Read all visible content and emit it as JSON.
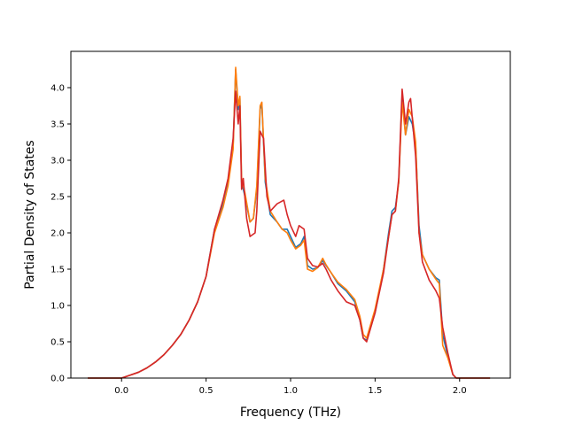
{
  "chart_data": {
    "type": "line",
    "title": "",
    "xlabel": "Frequency (THz)",
    "ylabel": "Partial Density of States",
    "xlim": [
      -0.3,
      2.3
    ],
    "ylim": [
      0.0,
      4.5
    ],
    "xticks": [
      0.0,
      0.5,
      1.0,
      1.5,
      2.0
    ],
    "xtick_labels": [
      "0.0",
      "0.5",
      "1.0",
      "1.5",
      "2.0"
    ],
    "yticks": [
      0.0,
      0.5,
      1.0,
      1.5,
      2.0,
      2.5,
      3.0,
      3.5,
      4.0
    ],
    "ytick_labels": [
      "0.0",
      "0.5",
      "1.0",
      "1.5",
      "2.0",
      "2.5",
      "3.0",
      "3.5",
      "4.0"
    ],
    "grid": false,
    "legend": "none",
    "series": [
      {
        "color": "#1f77b4",
        "points": [
          [
            -0.2,
            0
          ],
          [
            0.0,
            0
          ],
          [
            0.05,
            0.04
          ],
          [
            0.1,
            0.08
          ],
          [
            0.15,
            0.14
          ],
          [
            0.2,
            0.22
          ],
          [
            0.25,
            0.32
          ],
          [
            0.3,
            0.45
          ],
          [
            0.35,
            0.6
          ],
          [
            0.4,
            0.8
          ],
          [
            0.45,
            1.05
          ],
          [
            0.5,
            1.4
          ],
          [
            0.55,
            2.05
          ],
          [
            0.6,
            2.4
          ],
          [
            0.63,
            2.7
          ],
          [
            0.66,
            3.2
          ],
          [
            0.675,
            4.25
          ],
          [
            0.69,
            3.7
          ],
          [
            0.7,
            3.85
          ],
          [
            0.71,
            2.7
          ],
          [
            0.73,
            2.5
          ],
          [
            0.76,
            2.15
          ],
          [
            0.78,
            2.2
          ],
          [
            0.8,
            2.6
          ],
          [
            0.82,
            3.7
          ],
          [
            0.83,
            3.78
          ],
          [
            0.85,
            2.7
          ],
          [
            0.88,
            2.25
          ],
          [
            0.92,
            2.15
          ],
          [
            0.95,
            2.05
          ],
          [
            0.98,
            2.05
          ],
          [
            1.0,
            1.95
          ],
          [
            1.03,
            1.8
          ],
          [
            1.06,
            1.85
          ],
          [
            1.08,
            1.95
          ],
          [
            1.1,
            1.55
          ],
          [
            1.13,
            1.5
          ],
          [
            1.16,
            1.52
          ],
          [
            1.19,
            1.62
          ],
          [
            1.21,
            1.55
          ],
          [
            1.24,
            1.45
          ],
          [
            1.28,
            1.3
          ],
          [
            1.33,
            1.2
          ],
          [
            1.38,
            1.05
          ],
          [
            1.41,
            0.8
          ],
          [
            1.43,
            0.55
          ],
          [
            1.45,
            0.52
          ],
          [
            1.5,
            0.9
          ],
          [
            1.55,
            1.5
          ],
          [
            1.58,
            2.0
          ],
          [
            1.6,
            2.3
          ],
          [
            1.62,
            2.35
          ],
          [
            1.64,
            2.7
          ],
          [
            1.66,
            3.9
          ],
          [
            1.68,
            3.35
          ],
          [
            1.7,
            3.6
          ],
          [
            1.72,
            3.5
          ],
          [
            1.74,
            3.2
          ],
          [
            1.76,
            2.1
          ],
          [
            1.78,
            1.7
          ],
          [
            1.82,
            1.5
          ],
          [
            1.86,
            1.38
          ],
          [
            1.88,
            1.35
          ],
          [
            1.9,
            0.6
          ],
          [
            1.93,
            0.3
          ],
          [
            1.96,
            0.05
          ],
          [
            1.98,
            0
          ],
          [
            2.18,
            0
          ]
        ]
      },
      {
        "color": "#ff7f0e",
        "points": [
          [
            -0.2,
            0
          ],
          [
            0.0,
            0
          ],
          [
            0.05,
            0.04
          ],
          [
            0.1,
            0.08
          ],
          [
            0.15,
            0.14
          ],
          [
            0.2,
            0.22
          ],
          [
            0.25,
            0.32
          ],
          [
            0.3,
            0.45
          ],
          [
            0.35,
            0.6
          ],
          [
            0.4,
            0.8
          ],
          [
            0.45,
            1.05
          ],
          [
            0.5,
            1.4
          ],
          [
            0.55,
            2.0
          ],
          [
            0.6,
            2.35
          ],
          [
            0.63,
            2.65
          ],
          [
            0.66,
            3.15
          ],
          [
            0.675,
            4.28
          ],
          [
            0.69,
            3.75
          ],
          [
            0.7,
            3.88
          ],
          [
            0.71,
            2.75
          ],
          [
            0.73,
            2.55
          ],
          [
            0.76,
            2.15
          ],
          [
            0.78,
            2.2
          ],
          [
            0.8,
            2.65
          ],
          [
            0.82,
            3.75
          ],
          [
            0.83,
            3.8
          ],
          [
            0.85,
            2.75
          ],
          [
            0.88,
            2.3
          ],
          [
            0.92,
            2.15
          ],
          [
            0.95,
            2.05
          ],
          [
            0.98,
            2.0
          ],
          [
            1.0,
            1.9
          ],
          [
            1.03,
            1.78
          ],
          [
            1.06,
            1.83
          ],
          [
            1.08,
            1.9
          ],
          [
            1.1,
            1.5
          ],
          [
            1.13,
            1.47
          ],
          [
            1.16,
            1.52
          ],
          [
            1.19,
            1.65
          ],
          [
            1.21,
            1.56
          ],
          [
            1.24,
            1.45
          ],
          [
            1.28,
            1.32
          ],
          [
            1.33,
            1.22
          ],
          [
            1.38,
            1.08
          ],
          [
            1.41,
            0.85
          ],
          [
            1.43,
            0.6
          ],
          [
            1.45,
            0.55
          ],
          [
            1.5,
            0.95
          ],
          [
            1.55,
            1.5
          ],
          [
            1.58,
            1.95
          ],
          [
            1.6,
            2.25
          ],
          [
            1.62,
            2.3
          ],
          [
            1.64,
            2.7
          ],
          [
            1.66,
            3.8
          ],
          [
            1.68,
            3.35
          ],
          [
            1.7,
            3.7
          ],
          [
            1.72,
            3.6
          ],
          [
            1.74,
            3.25
          ],
          [
            1.76,
            2.0
          ],
          [
            1.78,
            1.7
          ],
          [
            1.82,
            1.5
          ],
          [
            1.86,
            1.36
          ],
          [
            1.88,
            1.3
          ],
          [
            1.9,
            0.45
          ],
          [
            1.93,
            0.28
          ],
          [
            1.96,
            0.05
          ],
          [
            1.98,
            0
          ],
          [
            2.18,
            0
          ]
        ]
      },
      {
        "color": "#d62728",
        "points": [
          [
            -0.2,
            0
          ],
          [
            0.0,
            0
          ],
          [
            0.05,
            0.04
          ],
          [
            0.1,
            0.08
          ],
          [
            0.15,
            0.14
          ],
          [
            0.2,
            0.22
          ],
          [
            0.25,
            0.32
          ],
          [
            0.3,
            0.45
          ],
          [
            0.35,
            0.6
          ],
          [
            0.4,
            0.8
          ],
          [
            0.45,
            1.05
          ],
          [
            0.5,
            1.4
          ],
          [
            0.55,
            2.05
          ],
          [
            0.6,
            2.45
          ],
          [
            0.63,
            2.75
          ],
          [
            0.66,
            3.3
          ],
          [
            0.675,
            3.95
          ],
          [
            0.69,
            3.5
          ],
          [
            0.7,
            3.75
          ],
          [
            0.71,
            2.6
          ],
          [
            0.72,
            2.75
          ],
          [
            0.74,
            2.2
          ],
          [
            0.76,
            1.95
          ],
          [
            0.79,
            2.0
          ],
          [
            0.8,
            2.3
          ],
          [
            0.82,
            3.4
          ],
          [
            0.84,
            3.3
          ],
          [
            0.86,
            2.5
          ],
          [
            0.88,
            2.3
          ],
          [
            0.92,
            2.4
          ],
          [
            0.96,
            2.45
          ],
          [
            0.98,
            2.25
          ],
          [
            1.0,
            2.1
          ],
          [
            1.03,
            1.95
          ],
          [
            1.05,
            2.1
          ],
          [
            1.08,
            2.05
          ],
          [
            1.1,
            1.65
          ],
          [
            1.13,
            1.55
          ],
          [
            1.16,
            1.53
          ],
          [
            1.19,
            1.58
          ],
          [
            1.21,
            1.5
          ],
          [
            1.24,
            1.35
          ],
          [
            1.28,
            1.2
          ],
          [
            1.33,
            1.05
          ],
          [
            1.38,
            1.0
          ],
          [
            1.41,
            0.8
          ],
          [
            1.43,
            0.55
          ],
          [
            1.45,
            0.5
          ],
          [
            1.5,
            0.9
          ],
          [
            1.55,
            1.45
          ],
          [
            1.58,
            1.95
          ],
          [
            1.6,
            2.25
          ],
          [
            1.62,
            2.3
          ],
          [
            1.64,
            2.75
          ],
          [
            1.66,
            3.98
          ],
          [
            1.68,
            3.5
          ],
          [
            1.7,
            3.8
          ],
          [
            1.71,
            3.85
          ],
          [
            1.74,
            3.05
          ],
          [
            1.76,
            2.0
          ],
          [
            1.78,
            1.6
          ],
          [
            1.82,
            1.35
          ],
          [
            1.86,
            1.2
          ],
          [
            1.88,
            1.1
          ],
          [
            1.9,
            0.7
          ],
          [
            1.93,
            0.35
          ],
          [
            1.96,
            0.05
          ],
          [
            1.98,
            0
          ],
          [
            2.18,
            0
          ]
        ]
      }
    ]
  }
}
